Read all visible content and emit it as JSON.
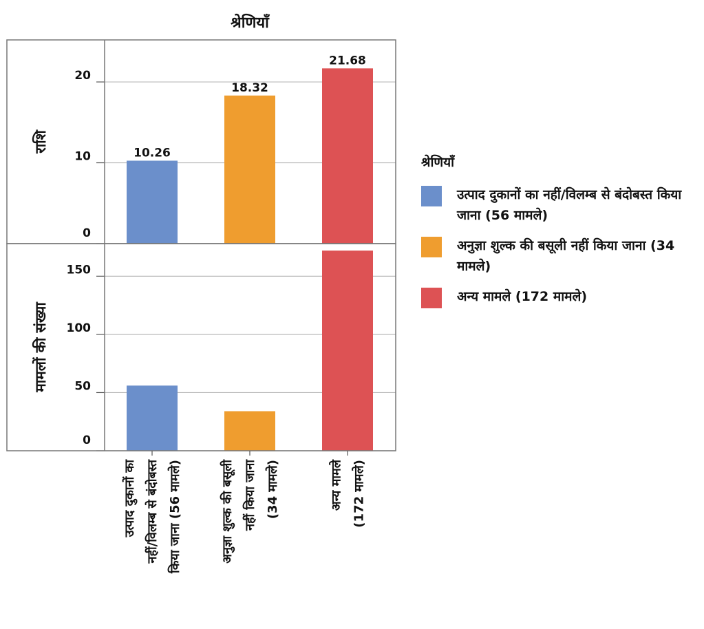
{
  "chart_data": {
    "type": "bar",
    "title": "श्रेणियाँ",
    "categories": [
      "उत्पाद दुकानों का नहीं/विलम्ब से बंदोबस्त किया जाना (56 मामले)",
      "अनुज्ञा शुल्क की बसूली नहीं किया जाना (34 मामले)",
      "अन्य मामले (172 मामले)"
    ],
    "category_lines": [
      [
        "उत्पाद दुकानों का",
        "नहीं/विलम्ब से बंदोबस्त",
        "किया जाना (56 मामले)"
      ],
      [
        "अनुज्ञा शुल्क की बसूली",
        "नहीं किया जाना",
        "(34 मामले)"
      ],
      [
        "अन्य मामले",
        "(172 मामले)"
      ]
    ],
    "colors": [
      "#6b8fcb",
      "#ef9d2f",
      "#dd5254"
    ],
    "panels": [
      {
        "ylabel": "राशि",
        "values": [
          10.26,
          18.32,
          21.68
        ],
        "data_labels": [
          "10.26",
          "18.32",
          "21.68"
        ],
        "ylim": [
          0,
          25.2
        ],
        "yticks": [
          0,
          10,
          20
        ]
      },
      {
        "ylabel": "मामलों की संख्या",
        "values": [
          56,
          34,
          172
        ],
        "data_labels": [],
        "ylim": [
          0,
          178
        ],
        "yticks": [
          0,
          50,
          100,
          150
        ]
      }
    ],
    "grid": true,
    "legend_position": "right"
  },
  "legend": {
    "title": "श्रेणियाँ",
    "items": [
      {
        "label": "उत्पाद दुकानों का नहीं/विलम्ब से बंदोबस्त किया जाना (56 मामले)",
        "color": "#6b8fcb"
      },
      {
        "label": "अनुज्ञा शुल्क की बसूली नहीं किया जाना (34 मामले)",
        "color": "#ef9d2f"
      },
      {
        "label": "अन्य मामले (172 मामले)",
        "color": "#dd5254"
      }
    ]
  }
}
